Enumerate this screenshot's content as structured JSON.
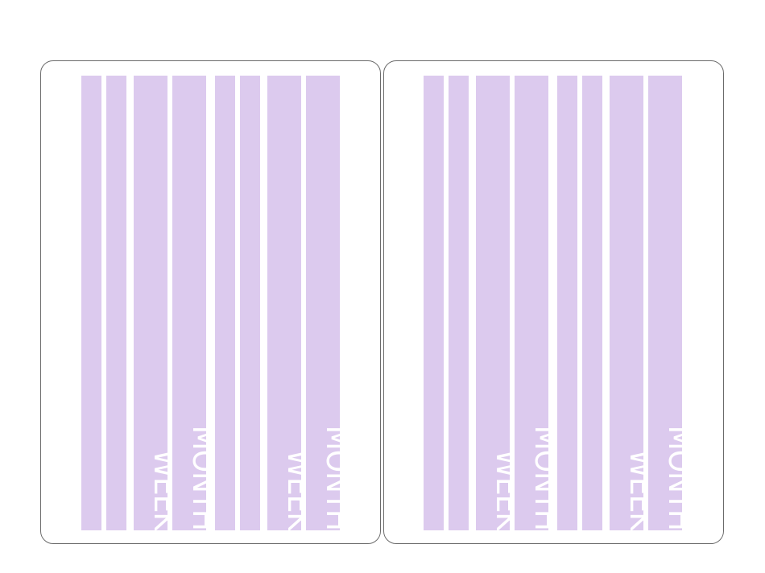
{
  "colors": {
    "strip_fill": "#dccaee",
    "label_text": "#ffffff",
    "sheet_border": "#6b6b6b",
    "background": "#ffffff"
  },
  "sheets": [
    {
      "strips": [
        {
          "label": ""
        },
        {
          "label": ""
        },
        {
          "label": "WEEK"
        },
        {
          "label": "MONTH"
        },
        {
          "label": ""
        },
        {
          "label": ""
        },
        {
          "label": "WEEK"
        },
        {
          "label": "MONTH"
        }
      ]
    },
    {
      "strips": [
        {
          "label": ""
        },
        {
          "label": ""
        },
        {
          "label": "WEEK"
        },
        {
          "label": "MONTH"
        },
        {
          "label": ""
        },
        {
          "label": ""
        },
        {
          "label": "WEEK"
        },
        {
          "label": "MONTH"
        }
      ]
    }
  ]
}
